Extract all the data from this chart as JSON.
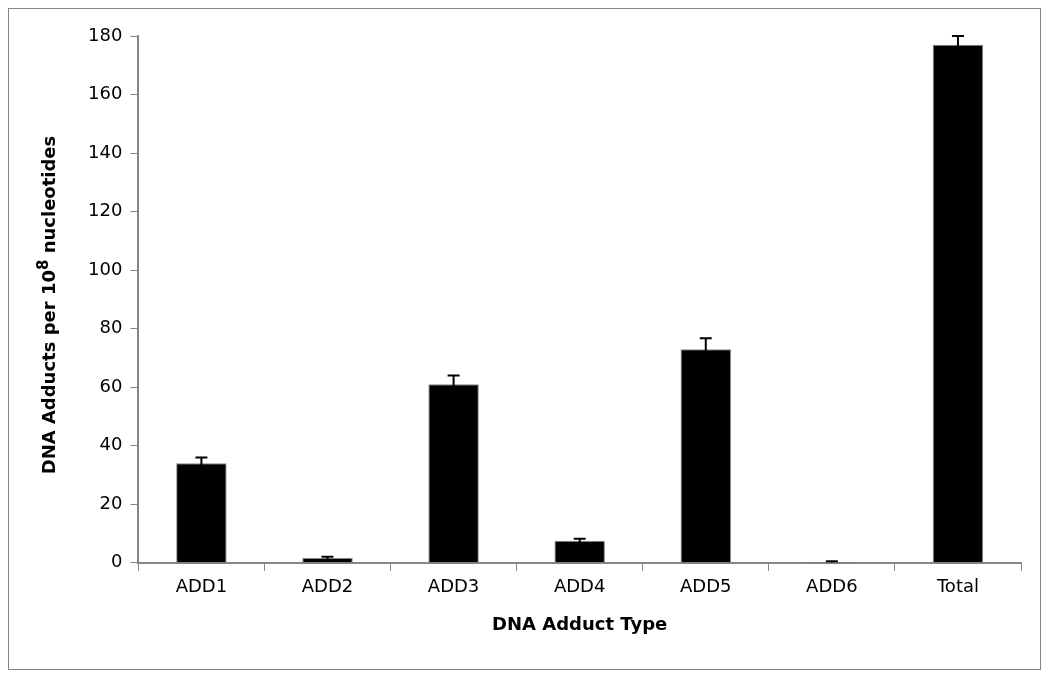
{
  "chart_data": {
    "type": "bar",
    "xlabel": "DNA Adduct Type",
    "ylabel": "DNA Adducts per 10$^{8}$ nucleotides",
    "categories": [
      "ADD1",
      "ADD2",
      "ADD3",
      "ADD4",
      "ADD5",
      "ADD6",
      "Total"
    ],
    "values": [
      34,
      1.6,
      61,
      7.5,
      73,
      0.3,
      177
    ],
    "errors": [
      2,
      0.5,
      3,
      0.7,
      3.7,
      0.2,
      3
    ],
    "color": "#000000",
    "ylim": [
      0,
      180
    ],
    "yticks": [
      0,
      20,
      40,
      60,
      80,
      100,
      120,
      140,
      160,
      180
    ],
    "grid": false,
    "legend": false
  }
}
